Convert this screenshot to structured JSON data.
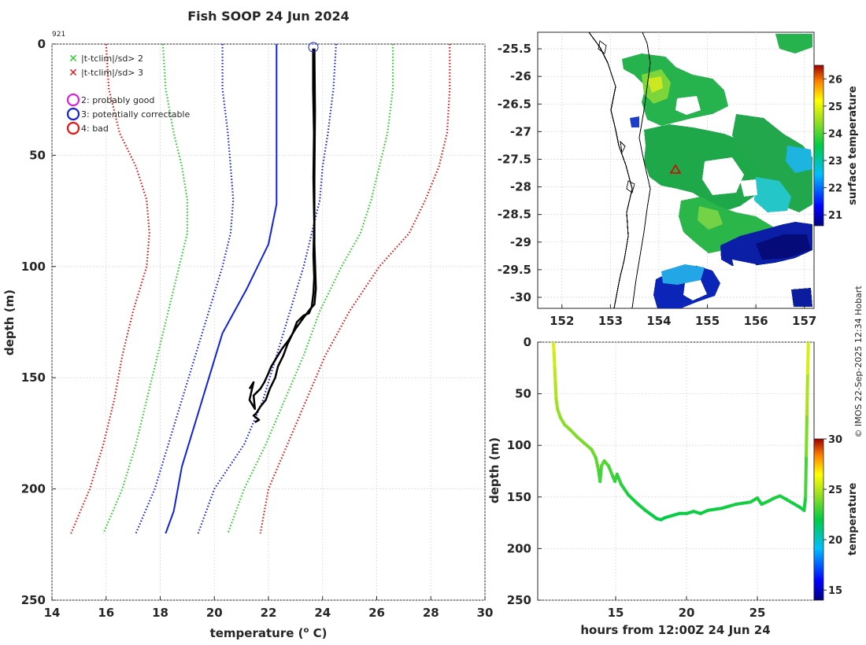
{
  "title": "Fish SOOP 24 Jun 2024",
  "profile_id": "921",
  "credit": "© IMOS 22-Sep-2025 12:34 Hobart",
  "legend": {
    "cross_items": [
      {
        "label": "|t-tclim|/sd> 2",
        "color": "#22cc22"
      },
      {
        "label": "|t-tclim|/sd> 3",
        "color": "#dd1111"
      }
    ],
    "circle_items": [
      {
        "label": "2: probably good",
        "color": "#dd22dd"
      },
      {
        "label": "3: potentially correctable",
        "color": "#1122dd"
      },
      {
        "label": "4: bad",
        "color": "#ee1111"
      }
    ]
  },
  "chart_data": [
    {
      "id": "profile",
      "type": "line",
      "xlabel": "temperature (",
      "xlabel_sup": "o",
      "xlabel_tail": " C)",
      "ylabel": "depth (m)",
      "xlim": [
        14,
        30
      ],
      "ylim": [
        250,
        0
      ],
      "y_reversed": true,
      "xticks": [
        14,
        16,
        18,
        20,
        22,
        24,
        26,
        28,
        30
      ],
      "yticks": [
        0,
        50,
        100,
        150,
        200,
        250
      ],
      "grid": true,
      "series": [
        {
          "name": "clim -3sd",
          "color": "#dd1111",
          "dash": true,
          "x": [
            16.0,
            16.1,
            16.5,
            17.1,
            17.5,
            17.6,
            17.5,
            17.0,
            16.6,
            16.3,
            15.9,
            15.4,
            14.7
          ],
          "y": [
            0,
            20,
            40,
            55,
            70,
            85,
            100,
            120,
            140,
            160,
            180,
            200,
            220
          ]
        },
        {
          "name": "clim -2sd",
          "color": "#22cc22",
          "dash": true,
          "x": [
            18.1,
            18.2,
            18.5,
            18.8,
            19.0,
            19.0,
            18.7,
            18.3,
            17.9,
            17.5,
            17.1,
            16.6,
            15.9
          ],
          "y": [
            0,
            20,
            40,
            55,
            70,
            85,
            100,
            120,
            140,
            160,
            180,
            200,
            220
          ]
        },
        {
          "name": "clim -1sd",
          "color": "#1122dd",
          "dash": true,
          "x": [
            20.3,
            20.3,
            20.5,
            20.6,
            20.7,
            20.6,
            20.3,
            19.8,
            19.3,
            18.8,
            18.3,
            17.8,
            17.1
          ],
          "y": [
            0,
            20,
            40,
            55,
            70,
            85,
            100,
            120,
            140,
            160,
            180,
            200,
            220
          ]
        },
        {
          "name": "climatology",
          "color": "#1122dd",
          "dash": false,
          "x": [
            22.3,
            22.3,
            22.3,
            22.3,
            22.3,
            22.0,
            21.2,
            20.3,
            19.8,
            19.3,
            18.8,
            18.5,
            18.2
          ],
          "y": [
            0,
            20,
            40,
            55,
            72,
            90,
            110,
            130,
            150,
            170,
            190,
            210,
            220
          ]
        },
        {
          "name": "clim +1sd",
          "color": "#1122dd",
          "dash": true,
          "x": [
            24.5,
            24.4,
            24.2,
            24.0,
            23.9,
            23.6,
            23.3,
            22.8,
            22.3,
            21.8,
            21.1,
            20.0,
            19.4
          ],
          "y": [
            0,
            20,
            40,
            55,
            70,
            85,
            100,
            120,
            140,
            160,
            180,
            200,
            220
          ]
        },
        {
          "name": "clim +2sd",
          "color": "#22cc22",
          "dash": true,
          "x": [
            26.6,
            26.6,
            26.4,
            26.1,
            25.8,
            25.4,
            24.7,
            23.9,
            23.3,
            22.6,
            21.9,
            21.1,
            20.5
          ],
          "y": [
            0,
            20,
            40,
            55,
            70,
            85,
            100,
            120,
            140,
            160,
            180,
            200,
            220
          ]
        },
        {
          "name": "clim +3sd",
          "color": "#dd1111",
          "dash": true,
          "x": [
            28.7,
            28.7,
            28.6,
            28.3,
            27.8,
            27.2,
            26.1,
            25.0,
            24.1,
            23.4,
            22.7,
            22.0,
            21.7
          ],
          "y": [
            0,
            20,
            40,
            55,
            70,
            85,
            100,
            120,
            140,
            160,
            180,
            200,
            220
          ]
        },
        {
          "name": "cast (downcast)",
          "color": "#000000",
          "dash": false,
          "width": 2.5,
          "x": [
            23.65,
            23.65,
            23.68,
            23.66,
            23.69,
            23.66,
            23.69,
            23.66,
            23.6,
            23.5,
            23.3,
            23.05,
            22.9,
            22.7,
            22.55,
            22.35,
            22.25,
            22.05,
            21.9,
            21.7,
            21.55,
            21.45,
            21.65,
            21.5
          ],
          "y": [
            2,
            20,
            40,
            60,
            80,
            95,
            105,
            112,
            118,
            121,
            122,
            125,
            130,
            135,
            140,
            145,
            150,
            155,
            160,
            163,
            166,
            167,
            169,
            170
          ]
        },
        {
          "name": "cast (upcast)",
          "color": "#000000",
          "dash": false,
          "width": 2.5,
          "x": [
            21.3,
            21.45,
            21.3,
            21.5,
            21.45,
            21.7,
            21.85,
            22.0,
            22.1,
            22.3,
            22.5,
            22.75,
            23.0,
            23.3,
            23.55,
            23.7,
            23.75,
            23.7,
            23.7,
            23.72,
            23.7
          ],
          "y": [
            155,
            152,
            160,
            164,
            158,
            155,
            152,
            148,
            145,
            141,
            137,
            133,
            128,
            123,
            119,
            117,
            110,
            90,
            60,
            30,
            2
          ]
        }
      ]
    },
    {
      "id": "map",
      "type": "heatmap",
      "xlim": [
        151.5,
        157.2
      ],
      "ylim": [
        -30.2,
        -25.2
      ],
      "xticks": [
        152,
        153,
        154,
        155,
        156,
        157
      ],
      "yticks": [
        -25.5,
        -26,
        -26.5,
        -27,
        -27.5,
        -28,
        -28.5,
        -29,
        -29.5,
        -30
      ],
      "colorbar_label": "surface temperature",
      "colorbar_range": [
        20.6,
        26.5
      ],
      "colorbar_ticks": [
        21,
        22,
        23,
        24,
        25,
        26
      ],
      "marker": {
        "lon": 154.4,
        "lat": -27.65,
        "symbol": "triangle",
        "color": "#dd0000"
      }
    },
    {
      "id": "section",
      "type": "line",
      "xlabel": "hours from 12:00Z 24 Jun 24",
      "ylabel": "depth (m)",
      "xlim": [
        9.5,
        29
      ],
      "ylim": [
        250,
        0
      ],
      "y_reversed": true,
      "xticks": [
        15,
        20,
        25
      ],
      "yticks": [
        0,
        50,
        100,
        150,
        200,
        250
      ],
      "colorbar_label": "temperature",
      "colorbar_range": [
        14,
        30
      ],
      "colorbar_ticks": [
        15,
        20,
        25,
        30
      ],
      "x": [
        10.6,
        10.65,
        10.7,
        10.75,
        10.8,
        10.9,
        11.1,
        11.4,
        11.8,
        12.3,
        12.8,
        13.3,
        13.6,
        13.8,
        13.9,
        14.0,
        14.2,
        14.5,
        14.8,
        14.95,
        15.1,
        15.4,
        15.9,
        16.5,
        17.1,
        17.6,
        17.9,
        18.2,
        18.5,
        19.0,
        19.5,
        20.0,
        20.5,
        21.0,
        21.5,
        22.0,
        22.5,
        23.0,
        23.5,
        24.0,
        24.5,
        25.0,
        25.3,
        25.8,
        26.2,
        26.6,
        27.0,
        27.5,
        28.0,
        28.3,
        28.4,
        28.45,
        28.5,
        28.55,
        28.6
      ],
      "y": [
        0,
        10,
        25,
        40,
        55,
        65,
        73,
        80,
        85,
        92,
        98,
        104,
        112,
        125,
        135,
        120,
        115,
        120,
        130,
        135,
        128,
        138,
        148,
        156,
        163,
        168,
        171,
        172,
        170,
        168,
        166,
        166,
        164,
        166,
        163,
        162,
        161,
        159,
        157,
        156,
        155,
        151,
        157,
        154,
        151,
        149,
        152,
        156,
        160,
        163,
        150,
        110,
        70,
        30,
        0
      ],
      "t": [
        24.5,
        24.3,
        24.0,
        23.8,
        23.6,
        23.4,
        23.3,
        23.2,
        23.1,
        23.0,
        22.9,
        22.8,
        22.6,
        22.2,
        21.8,
        22.3,
        22.4,
        22.2,
        21.9,
        21.8,
        21.9,
        21.6,
        21.4,
        21.3,
        21.2,
        21.1,
        21.0,
        21.0,
        21.0,
        21.1,
        21.1,
        21.1,
        21.2,
        21.1,
        21.2,
        21.2,
        21.2,
        21.3,
        21.3,
        21.3,
        21.3,
        21.4,
        21.3,
        21.4,
        21.4,
        21.4,
        21.4,
        21.3,
        21.2,
        21.2,
        21.6,
        22.5,
        23.3,
        24.0,
        24.6
      ]
    }
  ]
}
